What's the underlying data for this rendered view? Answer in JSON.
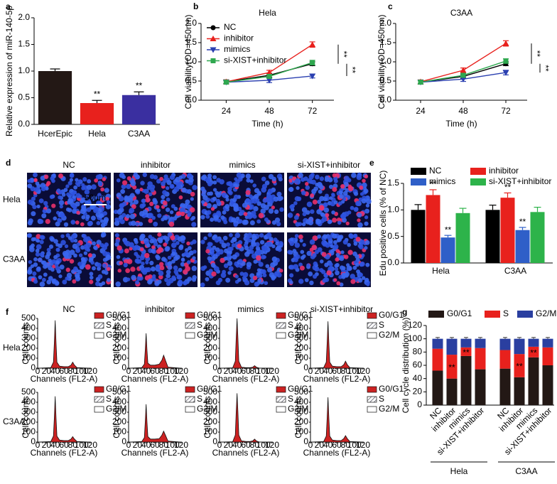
{
  "chart_data": [
    {
      "panel": "a",
      "type": "bar",
      "ylabel": "Relative expression of miR-140-5p",
      "categories": [
        "HcerEpic",
        "Hela",
        "C3AA"
      ],
      "values": [
        1.0,
        0.4,
        0.55
      ],
      "errors": [
        0.04,
        0.05,
        0.06
      ],
      "colors": [
        "#231815",
        "#e8211d",
        "#3a2fa0"
      ],
      "annotations": [
        null,
        "**",
        "**"
      ],
      "ylim": [
        0,
        2
      ],
      "yticks": [
        {
          "value": 0,
          "label": "0.0"
        },
        {
          "value": 0.5,
          "label": "0.5"
        },
        {
          "value": 1,
          "label": "1.0"
        },
        {
          "value": 1.5,
          "label": "1.5"
        },
        {
          "value": 2,
          "label": "2.0"
        }
      ]
    },
    {
      "panel": "b",
      "type": "line",
      "title": "Hela",
      "xlabel": "Time (h)",
      "ylabel": "Cell viability(OD=450nm)",
      "x": [
        24,
        48,
        72
      ],
      "xlim": [
        10,
        84
      ],
      "xticks": [
        24,
        48,
        72
      ],
      "ylim": [
        0,
        2
      ],
      "yticks": [
        {
          "value": 0,
          "label": "0.0"
        },
        {
          "value": 0.5,
          "label": "0.5"
        },
        {
          "value": 1,
          "label": "1.0"
        },
        {
          "value": 1.5,
          "label": "1.5"
        },
        {
          "value": 2,
          "label": "2.0"
        }
      ],
      "series": [
        {
          "name": "NC",
          "color": "#000000",
          "marker": "circle",
          "values": [
            0.48,
            0.65,
            0.95
          ],
          "errors": [
            0.05,
            0.05,
            0.05
          ]
        },
        {
          "name": "inhibitor",
          "color": "#e8211d",
          "marker": "triangle-up",
          "values": [
            0.48,
            0.72,
            1.45
          ],
          "errors": [
            0.05,
            0.06,
            0.07
          ]
        },
        {
          "name": "mimics",
          "color": "#2a3fb0",
          "marker": "triangle-down",
          "values": [
            0.47,
            0.52,
            0.63
          ],
          "errors": [
            0.04,
            0.06,
            0.05
          ]
        },
        {
          "name": "si-XIST+inhibitor",
          "color": "#2fa84f",
          "marker": "square",
          "values": [
            0.47,
            0.62,
            0.98
          ],
          "errors": [
            0.04,
            0.05,
            0.06
          ]
        }
      ],
      "annotations": [
        "**",
        "**"
      ],
      "legend": true
    },
    {
      "panel": "c",
      "type": "line",
      "title": "C3AA",
      "xlabel": "Time (h)",
      "ylabel": "Cell viability(OD=450nm)",
      "x": [
        24,
        48,
        72
      ],
      "xlim": [
        10,
        84
      ],
      "xticks": [
        24,
        48,
        72
      ],
      "ylim": [
        0,
        2
      ],
      "yticks": [
        {
          "value": 0,
          "label": "0.0"
        },
        {
          "value": 0.5,
          "label": "0.5"
        },
        {
          "value": 1,
          "label": "1.0"
        },
        {
          "value": 1.5,
          "label": "1.5"
        },
        {
          "value": 2,
          "label": "2.0"
        }
      ],
      "series": [
        {
          "name": "NC",
          "color": "#000000",
          "marker": "circle",
          "values": [
            0.47,
            0.62,
            0.95
          ],
          "errors": [
            0.05,
            0.05,
            0.05
          ]
        },
        {
          "name": "inhibitor",
          "color": "#e8211d",
          "marker": "triangle-up",
          "values": [
            0.48,
            0.78,
            1.48
          ],
          "errors": [
            0.05,
            0.06,
            0.07
          ]
        },
        {
          "name": "mimics",
          "color": "#2a3fb0",
          "marker": "triangle-down",
          "values": [
            0.47,
            0.55,
            0.72
          ],
          "errors": [
            0.04,
            0.06,
            0.06
          ]
        },
        {
          "name": "si-XIST+inhibitor",
          "color": "#2fa84f",
          "marker": "square",
          "values": [
            0.47,
            0.65,
            1.02
          ],
          "errors": [
            0.04,
            0.05,
            0.06
          ]
        }
      ],
      "annotations": [
        "**",
        "**"
      ],
      "legend": false
    },
    {
      "panel": "e",
      "type": "bar",
      "ylabel": "Edu positive cells (% of NC)",
      "categories": [
        "Hela",
        "C3AA"
      ],
      "ylim": [
        0,
        1.5
      ],
      "yticks": [
        {
          "value": 0,
          "label": "0.0"
        },
        {
          "value": 0.5,
          "label": "0.5"
        },
        {
          "value": 1,
          "label": "1.0"
        },
        {
          "value": 1.5,
          "label": "1.5"
        }
      ],
      "series": [
        {
          "name": "NC",
          "color": "#000000",
          "values": [
            1.0,
            1.0
          ],
          "errors": [
            0.1,
            0.09
          ],
          "annotations": [
            null,
            null
          ]
        },
        {
          "name": "inhibitor",
          "color": "#e8211d",
          "values": [
            1.28,
            1.23
          ],
          "errors": [
            0.1,
            0.09
          ],
          "annotations": [
            "**",
            "**"
          ]
        },
        {
          "name": "mimics",
          "color": "#2f5fc8",
          "values": [
            0.48,
            0.62
          ],
          "errors": [
            0.04,
            0.05
          ],
          "annotations": [
            "**",
            "**"
          ]
        },
        {
          "name": "si-XIST+inhibitor",
          "color": "#2db34a",
          "values": [
            0.94,
            0.96
          ],
          "errors": [
            0.09,
            0.09
          ],
          "annotations": [
            null,
            null
          ]
        }
      ]
    },
    {
      "panel": "f",
      "type": "area",
      "columns": [
        "NC",
        "inhibitor",
        "mimics",
        "si-XIST+inhibitor"
      ],
      "rows": [
        "Hela",
        "C3AA"
      ],
      "xlabel": "Channels (FL2-A)",
      "ylabel": "Cell counts",
      "xlim": [
        0,
        120
      ],
      "xticks": [
        0,
        20,
        40,
        60,
        80,
        100,
        120
      ],
      "ylim": [
        0,
        500
      ],
      "yticks": [
        0,
        100,
        200,
        300,
        400,
        500
      ],
      "color": "#cc2222",
      "legend": [
        {
          "name": "G0/G1",
          "color": "#cc2222"
        },
        {
          "name": "S",
          "color": "#ffffff",
          "pattern": "hatch"
        },
        {
          "name": "G2/M",
          "color": "#ffffff"
        }
      ],
      "x": [
        0,
        30,
        36,
        38,
        40,
        42,
        44,
        50,
        60,
        70,
        76,
        80,
        84,
        90,
        120
      ],
      "panels": [
        [
          0,
          5,
          60,
          250,
          480,
          250,
          60,
          20,
          15,
          15,
          30,
          60,
          30,
          5,
          0
        ],
        [
          0,
          5,
          40,
          180,
          350,
          180,
          50,
          30,
          30,
          40,
          80,
          130,
          80,
          10,
          0
        ],
        [
          0,
          3,
          70,
          300,
          500,
          300,
          70,
          10,
          5,
          5,
          10,
          25,
          10,
          2,
          0
        ],
        [
          0,
          5,
          60,
          250,
          470,
          250,
          60,
          20,
          15,
          15,
          35,
          70,
          35,
          5,
          0
        ],
        [
          0,
          5,
          60,
          240,
          460,
          240,
          60,
          20,
          15,
          15,
          30,
          55,
          30,
          5,
          0
        ],
        [
          0,
          5,
          45,
          200,
          380,
          200,
          55,
          30,
          30,
          35,
          70,
          110,
          70,
          10,
          0
        ],
        [
          0,
          3,
          70,
          300,
          490,
          300,
          70,
          12,
          6,
          6,
          12,
          30,
          12,
          2,
          0
        ],
        [
          0,
          5,
          60,
          240,
          450,
          240,
          60,
          20,
          15,
          15,
          35,
          65,
          35,
          5,
          0
        ]
      ]
    },
    {
      "panel": "g",
      "type": "bar",
      "stacked": true,
      "ylabel": "Cell cycle distribution (%)",
      "categories": [
        "NC",
        "inhibitor",
        "mimics",
        "si-XIST+inhibitor",
        "NC",
        "inhibitor",
        "mimics",
        "si-XIST+inhibitor"
      ],
      "groups": [
        "Hela",
        "C3AA"
      ],
      "ylim": [
        0,
        120
      ],
      "yticks": [
        0,
        20,
        40,
        60,
        80,
        100,
        120
      ],
      "series": [
        {
          "name": "G0/G1",
          "color": "#231815",
          "values": [
            52,
            40,
            74,
            54,
            55,
            42,
            72,
            60
          ],
          "errors": [
            2,
            2,
            2,
            2,
            2,
            2,
            2,
            2
          ]
        },
        {
          "name": "S",
          "color": "#e8211d",
          "values": [
            33,
            36,
            13,
            32,
            28,
            35,
            16,
            27
          ],
          "errors": [
            2,
            2,
            2,
            2,
            2,
            2,
            2,
            2
          ],
          "annotations": [
            null,
            "**",
            "**",
            null,
            null,
            "**",
            "**",
            null
          ]
        },
        {
          "name": "G2/M",
          "color": "#2a3fa0",
          "values": [
            15,
            24,
            13,
            14,
            17,
            23,
            12,
            13
          ],
          "errors": [
            2,
            2,
            2,
            2,
            2,
            2,
            2,
            2
          ]
        }
      ]
    }
  ],
  "image_grid": {
    "panel": "d",
    "columns": [
      "NC",
      "inhibitor",
      "mimics",
      "si-XIST+inhibitor"
    ],
    "rows": [
      "Hela",
      "C3AA"
    ],
    "scale_bar": "50μm"
  }
}
